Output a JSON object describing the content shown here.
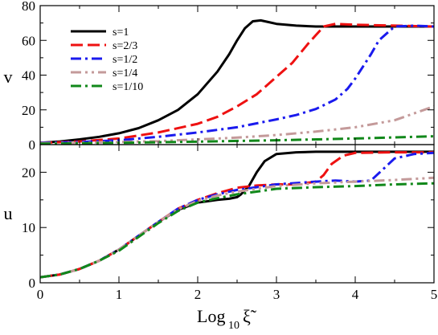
{
  "chart_data": [
    {
      "type": "line",
      "panel": "top",
      "title": "",
      "xlabel": "",
      "ylabel": "v",
      "xlim": [
        0,
        5
      ],
      "ylim": [
        0,
        80
      ],
      "yticks": [
        "0",
        "20",
        "40",
        "60",
        "80"
      ],
      "legend_placement": "top-left",
      "series": [
        {
          "name": "s=1",
          "color": "#000000",
          "dash": "solid",
          "x": [
            0,
            0.25,
            0.5,
            0.75,
            1,
            1.25,
            1.5,
            1.75,
            2,
            2.25,
            2.4,
            2.5,
            2.6,
            2.7,
            2.8,
            2.9,
            3,
            3.25,
            3.5,
            4,
            4.5,
            5
          ],
          "y": [
            1,
            1.8,
            3,
            4.5,
            6.5,
            9.5,
            14,
            20,
            29,
            42,
            52,
            60,
            67,
            71,
            71.5,
            70.5,
            69.5,
            68.5,
            68,
            68,
            68,
            68
          ]
        },
        {
          "name": "s=2/3",
          "color": "#ee1111",
          "dash": "dashed",
          "x": [
            0,
            0.5,
            1,
            1.5,
            2,
            2.25,
            2.5,
            2.75,
            3,
            3.2,
            3.4,
            3.5,
            3.6,
            3.75,
            4,
            4.5,
            5
          ],
          "y": [
            1,
            1.8,
            3.5,
            7,
            12,
            16,
            22,
            29,
            39,
            47,
            58,
            63,
            68,
            69.5,
            69,
            68.5,
            68
          ]
        },
        {
          "name": "s=1/2",
          "color": "#1a1aee",
          "dash": "dashdot",
          "x": [
            0,
            0.5,
            1,
            1.5,
            2,
            2.5,
            3,
            3.25,
            3.5,
            3.75,
            3.9,
            4,
            4.1,
            4.2,
            4.3,
            4.5,
            4.75,
            5
          ],
          "y": [
            1,
            1.5,
            2.5,
            4.5,
            7,
            10,
            14.5,
            17,
            20.5,
            26,
            32,
            38,
            45,
            52,
            60,
            68,
            68.5,
            68
          ]
        },
        {
          "name": "s=1/4",
          "color": "#c49a9a",
          "dash": "dashdotdot",
          "x": [
            0,
            0.5,
            1,
            1.5,
            2,
            2.5,
            3,
            3.5,
            4,
            4.5,
            5
          ],
          "y": [
            0.8,
            1,
            1.5,
            2,
            3,
            4,
            5.5,
            7.5,
            10,
            14,
            22
          ]
        },
        {
          "name": "s=1/10",
          "color": "#11881a",
          "dash": "dashdot",
          "x": [
            0,
            1,
            2,
            3,
            4,
            5
          ],
          "y": [
            0.5,
            1,
            1.7,
            2.5,
            3.5,
            4.8
          ]
        }
      ]
    },
    {
      "type": "line",
      "panel": "bottom",
      "title": "",
      "xlabel": "Log10ξ̃",
      "xlabel_main": "Log",
      "xlabel_sub": "10",
      "xlabel_symbol": "ξ̃",
      "ylabel": "u",
      "xlim": [
        0,
        5
      ],
      "ylim": [
        0,
        25
      ],
      "xticks": [
        "0",
        "1",
        "2",
        "3",
        "4",
        "5"
      ],
      "yticks": [
        "0",
        "10",
        "20"
      ],
      "series": [
        {
          "name": "s=1",
          "color": "#000000",
          "dash": "solid",
          "x": [
            0,
            0.25,
            0.5,
            0.75,
            1,
            1.25,
            1.5,
            1.75,
            2,
            2.25,
            2.4,
            2.5,
            2.55,
            2.65,
            2.75,
            2.85,
            3,
            3.25,
            3.5,
            4,
            4.5,
            5
          ],
          "y": [
            1,
            1.5,
            2.5,
            4,
            6,
            8.5,
            11,
            13.2,
            14.5,
            15,
            15.2,
            15.5,
            16,
            17.5,
            20,
            22,
            23.3,
            23.6,
            23.7,
            23.7,
            23.7,
            23.7
          ]
        },
        {
          "name": "s=2/3",
          "color": "#ee1111",
          "dash": "dashed",
          "x": [
            0,
            0.25,
            0.5,
            0.75,
            1,
            1.25,
            1.5,
            1.75,
            2,
            2.25,
            2.5,
            2.75,
            3,
            3.25,
            3.5,
            3.6,
            3.7,
            3.85,
            4,
            4.5,
            5
          ],
          "y": [
            1,
            1.5,
            2.5,
            4,
            6,
            8.5,
            11,
            13.4,
            15,
            16.2,
            17.2,
            17.6,
            17.8,
            17.8,
            18.3,
            19.5,
            21.5,
            23,
            23.5,
            23.6,
            23.6
          ]
        },
        {
          "name": "s=1/2",
          "color": "#1a1aee",
          "dash": "dashdot",
          "x": [
            0,
            0.25,
            0.5,
            0.75,
            1,
            1.25,
            1.5,
            1.75,
            2,
            2.25,
            2.5,
            2.75,
            3,
            3.5,
            3.75,
            4,
            4.2,
            4.35,
            4.5,
            4.75,
            5
          ],
          "y": [
            1,
            1.5,
            2.5,
            4,
            6,
            8.5,
            11,
            13.4,
            15,
            16,
            16.8,
            17.3,
            17.8,
            18.3,
            18.5,
            18.3,
            18.5,
            20.5,
            22.5,
            23.3,
            23.5
          ]
        },
        {
          "name": "s=1/4",
          "color": "#c49a9a",
          "dash": "dashdotdot",
          "x": [
            0,
            0.25,
            0.5,
            0.75,
            1,
            1.25,
            1.5,
            1.75,
            2,
            2.25,
            2.5,
            2.75,
            3,
            3.5,
            4,
            4.5,
            5
          ],
          "y": [
            1,
            1.5,
            2.5,
            4,
            6,
            8.5,
            11,
            13.3,
            14.8,
            15.8,
            16.5,
            17,
            17.5,
            18,
            18.3,
            18.6,
            19
          ]
        },
        {
          "name": "s=1/10",
          "color": "#11881a",
          "dash": "dashdot",
          "x": [
            0,
            0.25,
            0.5,
            0.75,
            1,
            1.25,
            1.5,
            1.75,
            2,
            2.25,
            2.5,
            2.75,
            3,
            3.5,
            4,
            4.5,
            5
          ],
          "y": [
            1,
            1.5,
            2.5,
            4,
            5.8,
            8.3,
            10.8,
            13,
            14.5,
            15.3,
            16,
            16.5,
            17,
            17.3,
            17.5,
            17.8,
            18
          ]
        }
      ]
    }
  ]
}
